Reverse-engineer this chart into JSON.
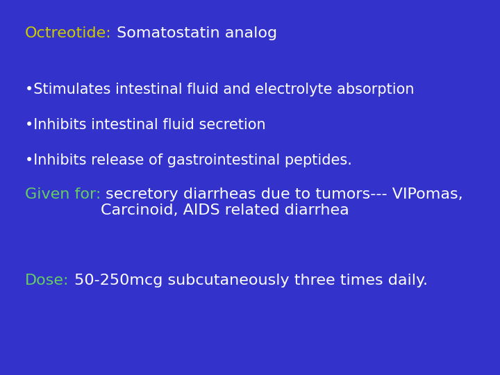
{
  "background_color": "#3333cc",
  "title_yellow": "Octreotide:",
  "title_white": " Somatostatin analog",
  "bullets": [
    "•Stimulates intestinal fluid and electrolyte absorption",
    "•Inhibits intestinal fluid secretion",
    "•Inhibits release of gastrointestinal peptides."
  ],
  "given_label": "Given for:",
  "given_text": " secretory diarrheas due to tumors--- VIPomas,\nCarcinoid, AIDS related diarrhea",
  "dose_label": "Dose:",
  "dose_text": " 50-250mcg subcutaneously three times daily.",
  "color_yellow": "#cccc00",
  "color_white": "#ffffff",
  "color_green": "#66cc66",
  "title_fontsize": 16,
  "bullet_fontsize": 15,
  "given_fontsize": 16,
  "dose_fontsize": 16,
  "figsize": [
    7.2,
    5.4
  ],
  "dpi": 100
}
